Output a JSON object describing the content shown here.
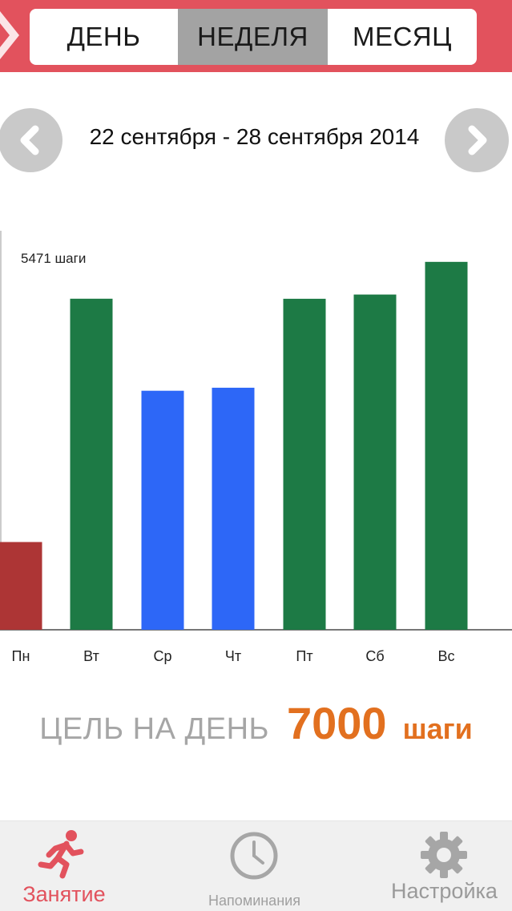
{
  "header": {
    "tabs": [
      {
        "label": "ДЕНЬ",
        "active": false
      },
      {
        "label": "НЕДЕЛЯ",
        "active": true
      },
      {
        "label": "МЕСЯЦ",
        "active": false
      }
    ]
  },
  "date_nav": {
    "range": "22 сентября - 28 сентября 2014",
    "prev_icon": "chevron-left-icon",
    "next_icon": "chevron-right-icon"
  },
  "chart_data": {
    "type": "bar",
    "categories": [
      "Пн",
      "Вт",
      "Ср",
      "Чт",
      "Пт",
      "Сб",
      "Вс"
    ],
    "values": [
      1450,
      5471,
      3950,
      4000,
      5470,
      5540,
      6080
    ],
    "bar_colors": [
      "#ad3535",
      "#1d7a45",
      "#2d67f7",
      "#2d67f7",
      "#1d7a45",
      "#1d7a45",
      "#1d7a45"
    ],
    "annotation": "5471 шаги",
    "annotated_value": 5471,
    "ylim": [
      0,
      6700
    ],
    "grid": false,
    "legend": "none"
  },
  "goal": {
    "label": "ЦЕЛЬ НА ДЕНЬ",
    "value": "7000",
    "unit": "шаги"
  },
  "bottom_nav": {
    "items": [
      {
        "label": "Занятие",
        "icon": "running-person-icon",
        "active": true
      },
      {
        "label": "Напоминания",
        "icon": "clock-icon",
        "active": false
      },
      {
        "label": "Настройка",
        "icon": "gear-icon",
        "active": false
      }
    ]
  },
  "colors": {
    "accent": "#e2525d",
    "goal": "#e2701f",
    "active_tab": "#a3a3a3"
  }
}
